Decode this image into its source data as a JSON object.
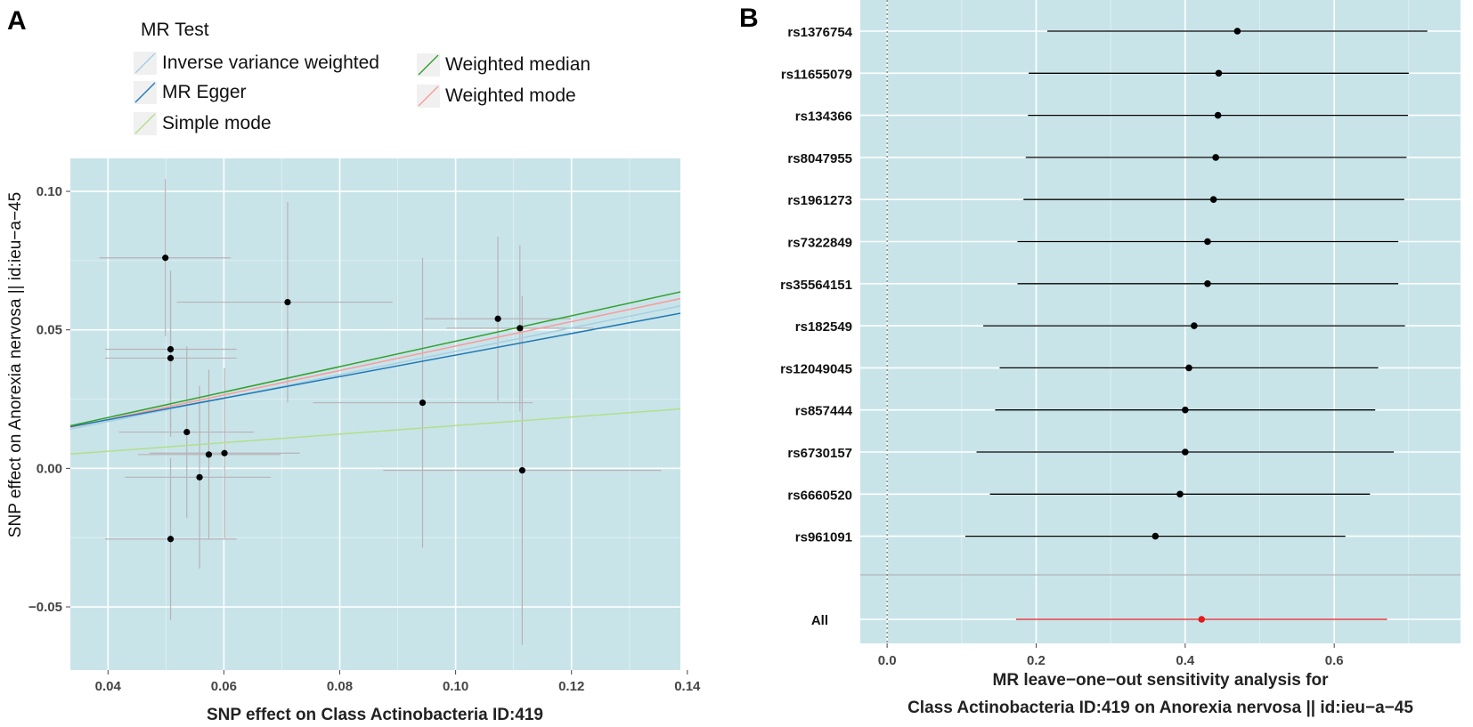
{
  "chart_data": [
    {
      "panel": "A",
      "type": "scatter",
      "legend_title": "MR Test",
      "xlabel": "SNP effect on Class Actinobacteria ID:419",
      "ylabel": "SNP effect on Anorexia nervosa || id:ieu−a−45",
      "xlim": [
        0.0335,
        0.1388
      ],
      "ylim": [
        -0.0728,
        0.1119
      ],
      "xticks": [
        0.04,
        0.06,
        0.08,
        0.1,
        0.12,
        0.14
      ],
      "xtick_labels": [
        "0.04",
        "0.06",
        "0.08",
        "0.10",
        "0.12",
        "0.14"
      ],
      "yticks": [
        0.1,
        0.05,
        0.0,
        -0.05
      ],
      "ytick_labels": [
        "0.10",
        "0.05",
        "0.00",
        "−0.05"
      ],
      "grid": true,
      "legend_position": "top",
      "points": [
        {
          "x": 0.0499,
          "y": 0.076,
          "xlo": 0.0385,
          "xhi": 0.0612,
          "ylo": 0.0476,
          "yhi": 0.1044
        },
        {
          "x": 0.0508,
          "y": 0.043,
          "xlo": 0.0395,
          "xhi": 0.0622,
          "ylo": 0.0146,
          "yhi": 0.0714
        },
        {
          "x": 0.0508,
          "y": 0.0398,
          "xlo": 0.0395,
          "xhi": 0.0622,
          "ylo": 0.0114,
          "yhi": 0.0682
        },
        {
          "x": 0.0508,
          "y": -0.0255,
          "xlo": 0.0395,
          "xhi": 0.0622,
          "ylo": -0.0547,
          "yhi": 0.0037
        },
        {
          "x": 0.0536,
          "y": 0.0131,
          "xlo": 0.0419,
          "xhi": 0.0652,
          "ylo": -0.0179,
          "yhi": 0.0441
        },
        {
          "x": 0.0558,
          "y": -0.0032,
          "xlo": 0.0429,
          "xhi": 0.0681,
          "ylo": -0.0362,
          "yhi": 0.0298
        },
        {
          "x": 0.0574,
          "y": 0.005,
          "xlo": 0.0452,
          "xhi": 0.0698,
          "ylo": -0.0257,
          "yhi": 0.0357
        },
        {
          "x": 0.0601,
          "y": 0.0055,
          "xlo": 0.0472,
          "xhi": 0.0731,
          "ylo": -0.0252,
          "yhi": 0.0362
        },
        {
          "x": 0.071,
          "y": 0.06,
          "xlo": 0.0519,
          "xhi": 0.0891,
          "ylo": 0.0238,
          "yhi": 0.0962
        },
        {
          "x": 0.0943,
          "y": 0.0237,
          "xlo": 0.0754,
          "xhi": 0.1133,
          "ylo": -0.0286,
          "yhi": 0.076
        },
        {
          "x": 0.1073,
          "y": 0.054,
          "xlo": 0.0946,
          "xhi": 0.12,
          "ylo": 0.0244,
          "yhi": 0.0836
        },
        {
          "x": 0.1111,
          "y": 0.0506,
          "xlo": 0.0984,
          "xhi": 0.1238,
          "ylo": 0.0206,
          "yhi": 0.0806
        },
        {
          "x": 0.1115,
          "y": -0.0007,
          "xlo": 0.0875,
          "xhi": 0.1355,
          "ylo": -0.0637,
          "yhi": 0.0623
        }
      ],
      "lines": [
        {
          "name": "Inverse variance weighted",
          "intercept": 0.0,
          "slope": 0.4225,
          "color": "#a6cee3"
        },
        {
          "name": "MR Egger",
          "intercept": 0.002,
          "slope": 0.389,
          "color": "#1f78b4"
        },
        {
          "name": "Simple mode",
          "intercept": 0.0,
          "slope": 0.1545,
          "color": "#b2df8a"
        },
        {
          "name": "Weighted median",
          "intercept": 0.0,
          "slope": 0.459,
          "color": "#33a02c"
        },
        {
          "name": "Weighted mode",
          "intercept": 0.0,
          "slope": 0.4415,
          "color": "#fb9a99"
        }
      ],
      "legend_columns": [
        [
          "Inverse variance weighted",
          "MR Egger",
          "Simple mode"
        ],
        [
          "Weighted median",
          "Weighted mode"
        ]
      ]
    },
    {
      "panel": "B",
      "type": "forest",
      "xlabel_line1": "MR leave−one−out sensitivity analysis for",
      "xlabel_line2": "Class Actinobacteria ID:419 on Anorexia nervosa || id:ieu−a−45",
      "xlim": [
        -0.036,
        0.7695
      ],
      "xticks": [
        0.0,
        0.2,
        0.4,
        0.6
      ],
      "xtick_labels": [
        "0.0",
        "0.2",
        "0.4",
        "0.6"
      ],
      "reference_line": 0.0,
      "grid": true,
      "rows": [
        {
          "label": "rs1376754",
          "estimate": 0.47,
          "lo": 0.215,
          "hi": 0.725
        },
        {
          "label": "rs11655079",
          "estimate": 0.445,
          "lo": 0.19,
          "hi": 0.7
        },
        {
          "label": "rs134366",
          "estimate": 0.444,
          "lo": 0.189,
          "hi": 0.699
        },
        {
          "label": "rs8047955",
          "estimate": 0.441,
          "lo": 0.186,
          "hi": 0.697
        },
        {
          "label": "rs1961273",
          "estimate": 0.438,
          "lo": 0.183,
          "hi": 0.694
        },
        {
          "label": "rs7322849",
          "estimate": 0.43,
          "lo": 0.175,
          "hi": 0.686
        },
        {
          "label": "rs35564151",
          "estimate": 0.43,
          "lo": 0.175,
          "hi": 0.686
        },
        {
          "label": "rs182549",
          "estimate": 0.412,
          "lo": 0.129,
          "hi": 0.695
        },
        {
          "label": "rs12049045",
          "estimate": 0.405,
          "lo": 0.151,
          "hi": 0.659
        },
        {
          "label": "rs857444",
          "estimate": 0.4,
          "lo": 0.145,
          "hi": 0.655
        },
        {
          "label": "rs6730157",
          "estimate": 0.4,
          "lo": 0.12,
          "hi": 0.68
        },
        {
          "label": "rs6660520",
          "estimate": 0.393,
          "lo": 0.138,
          "hi": 0.648
        },
        {
          "label": "rs961091",
          "estimate": 0.36,
          "lo": 0.105,
          "hi": 0.615
        }
      ],
      "overall": {
        "label": "All",
        "estimate": 0.422,
        "lo": 0.173,
        "hi": 0.671,
        "color": "#e41a1c"
      }
    }
  ]
}
